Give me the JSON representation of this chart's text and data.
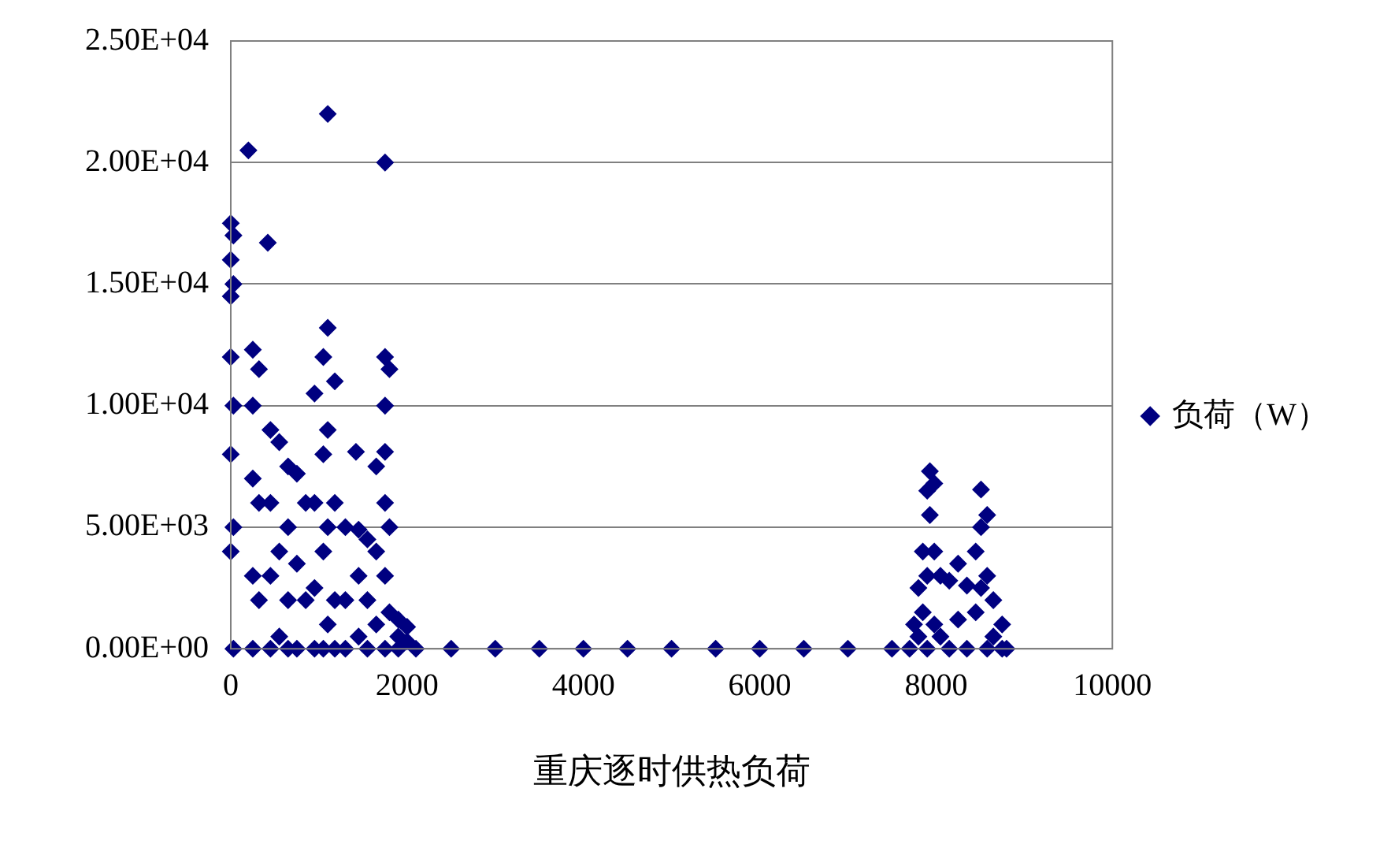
{
  "chart_data": {
    "type": "scatter",
    "xlabel": "重庆逐时供热负荷",
    "series": [
      {
        "name": "负荷（W）",
        "color": "#000080",
        "x": [
          0,
          0,
          0,
          0,
          0,
          0,
          30,
          30,
          30,
          30,
          30,
          200,
          250,
          250,
          250,
          250,
          250,
          320,
          320,
          320,
          420,
          450,
          450,
          450,
          450,
          550,
          550,
          550,
          650,
          650,
          650,
          650,
          750,
          750,
          750,
          850,
          850,
          950,
          950,
          950,
          950,
          1050,
          1050,
          1050,
          1050,
          1100,
          1100,
          1100,
          1100,
          1100,
          1180,
          1180,
          1180,
          1180,
          1300,
          1300,
          1300,
          1420,
          1450,
          1450,
          1450,
          1550,
          1550,
          1550,
          1650,
          1650,
          1650,
          1750,
          1750,
          1750,
          1750,
          1750,
          1750,
          1750,
          1800,
          1800,
          1800,
          1900,
          1900,
          1900,
          2000,
          2000,
          2100,
          2500,
          3000,
          3500,
          4000,
          4500,
          5000,
          5500,
          6000,
          6500,
          7000,
          7500,
          7700,
          7750,
          7800,
          7800,
          7850,
          7850,
          7900,
          7900,
          7900,
          7930,
          7930,
          7980,
          7980,
          7980,
          8050,
          8050,
          8150,
          8150,
          8250,
          8250,
          8350,
          8350,
          8450,
          8450,
          8510,
          8510,
          8510,
          8580,
          8580,
          8580,
          8650,
          8650,
          8750,
          8750,
          8800
        ],
        "values": [
          17500,
          16000,
          14500,
          12000,
          8000,
          4000,
          17000,
          15000,
          10000,
          5000,
          0,
          20500,
          12300,
          10000,
          7000,
          3000,
          0,
          11500,
          6000,
          2000,
          16700,
          9000,
          6000,
          3000,
          0,
          8500,
          4000,
          500,
          7500,
          5000,
          2000,
          0,
          7200,
          3500,
          0,
          6000,
          2000,
          10500,
          6000,
          2500,
          0,
          12000,
          8000,
          4000,
          0,
          22000,
          13200,
          9000,
          5000,
          1000,
          11000,
          6000,
          2000,
          0,
          5000,
          2000,
          0,
          8100,
          4900,
          3000,
          500,
          4500,
          2000,
          0,
          7500,
          4000,
          1000,
          20000,
          12000,
          10000,
          8100,
          6000,
          3000,
          0,
          11500,
          5000,
          1500,
          1200,
          500,
          0,
          900,
          300,
          0,
          0,
          0,
          0,
          0,
          0,
          0,
          0,
          0,
          0,
          0,
          0,
          0,
          1000,
          2500,
          500,
          4000,
          1500,
          6500,
          3000,
          0,
          7300,
          5500,
          6800,
          4000,
          1000,
          3000,
          500,
          2800,
          0,
          3500,
          1200,
          2600,
          0,
          4000,
          1500,
          6550,
          5000,
          2500,
          5500,
          3000,
          0,
          2000,
          500,
          1000,
          0,
          0
        ]
      }
    ],
    "xlim": [
      0,
      10000
    ],
    "xticks": [
      0,
      2000,
      4000,
      6000,
      8000,
      10000
    ],
    "ylim": [
      0,
      25000
    ],
    "yticks": [
      {
        "value": 0,
        "label": "0.00E+00"
      },
      {
        "value": 5000,
        "label": "5.00E+03"
      },
      {
        "value": 10000,
        "label": "1.00E+04"
      },
      {
        "value": 15000,
        "label": "1.50E+04"
      },
      {
        "value": 20000,
        "label": "2.00E+04"
      },
      {
        "value": 25000,
        "label": "2.50E+04"
      }
    ],
    "grid": "y",
    "legend": "right",
    "marker": "diamond"
  }
}
